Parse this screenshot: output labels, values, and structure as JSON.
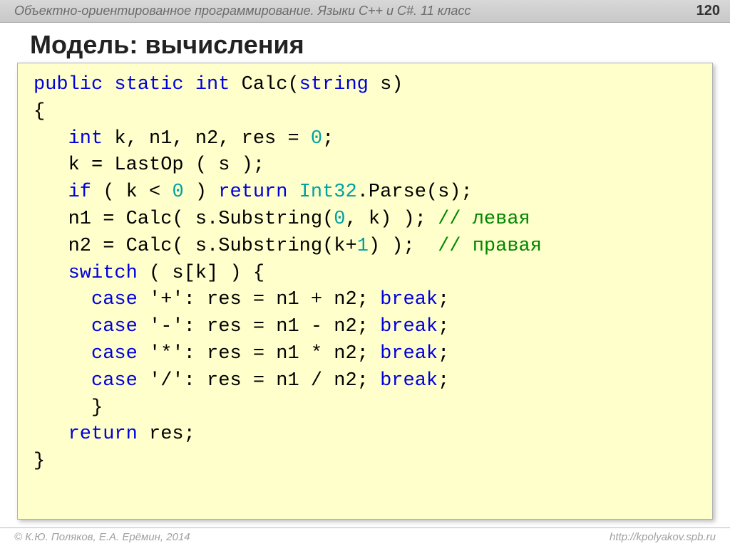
{
  "header": {
    "course": "Объектно-ориентированное программирование. Языки C++ и C#. 11 класс",
    "page": "120"
  },
  "title": "Модель: вычисления",
  "code": {
    "sig_kw1": "public static int",
    "sig_name": " Calc(",
    "sig_kw2": "string",
    "sig_tail": " s)",
    "brace_open": "{",
    "l3_pad": "   ",
    "l3_kw": "int",
    "l3_txt": " k, n1, n2, res = ",
    "l3_zero": "0",
    "l3_semi": ";",
    "l4": "   k = LastOp ( s );",
    "l5_pad": "   ",
    "l5_if": "if",
    "l5_mid": " ( k < ",
    "l5_zero": "0",
    "l5_mid2": " ) ",
    "l5_ret": "return",
    "l5_sp": " ",
    "l5_int32": "Int32",
    "l5_tail": ".Parse(s);",
    "l6_pad": "   n1 = Calc( s.Substring(",
    "l6_zero": "0",
    "l6_mid": ", k) ); ",
    "l6_cm": "// левая",
    "l7_pad": "   n2 = Calc( s.Substring(k+",
    "l7_one": "1",
    "l7_mid": ") );  ",
    "l7_cm": "// правая",
    "l8_pad": "   ",
    "l8_sw": "switch",
    "l8_tail": " ( s[k] ) {",
    "c1_pad": "     ",
    "c1_kw": "case",
    "c1_mid": " '+': res = n1 + n2; ",
    "c1_br": "break",
    "c1_semi": ";",
    "c2_pad": "     ",
    "c2_kw": "case",
    "c2_mid": " '-': res = n1 - n2; ",
    "c2_br": "break",
    "c2_semi": ";",
    "c3_pad": "     ",
    "c3_kw": "case",
    "c3_mid": " '*': res = n1 * n2; ",
    "c3_br": "break",
    "c3_semi": ";",
    "c4_pad": "     ",
    "c4_kw": "case",
    "c4_mid": " '/': res = n1 / n2; ",
    "c4_br": "break",
    "c4_semi": ";",
    "sw_close": "     }",
    "ret_pad": "   ",
    "ret_kw": "return",
    "ret_tail": " res;",
    "brace_close": "}"
  },
  "footer": {
    "left": "© К.Ю. Поляков, Е.А. Ерёмин, 2014",
    "right": "http://kpolyakov.spb.ru"
  },
  "colors": {
    "code_bg": "#ffffcc",
    "keyword": "#0000dd",
    "number": "#00a0a0",
    "comment": "#008800",
    "text": "#000000",
    "header_grad_top": "#d8d8d8",
    "header_grad_bot": "#c8c8c8"
  },
  "fontsize": {
    "code": 27,
    "title": 36,
    "header": 18,
    "footer": 15
  }
}
